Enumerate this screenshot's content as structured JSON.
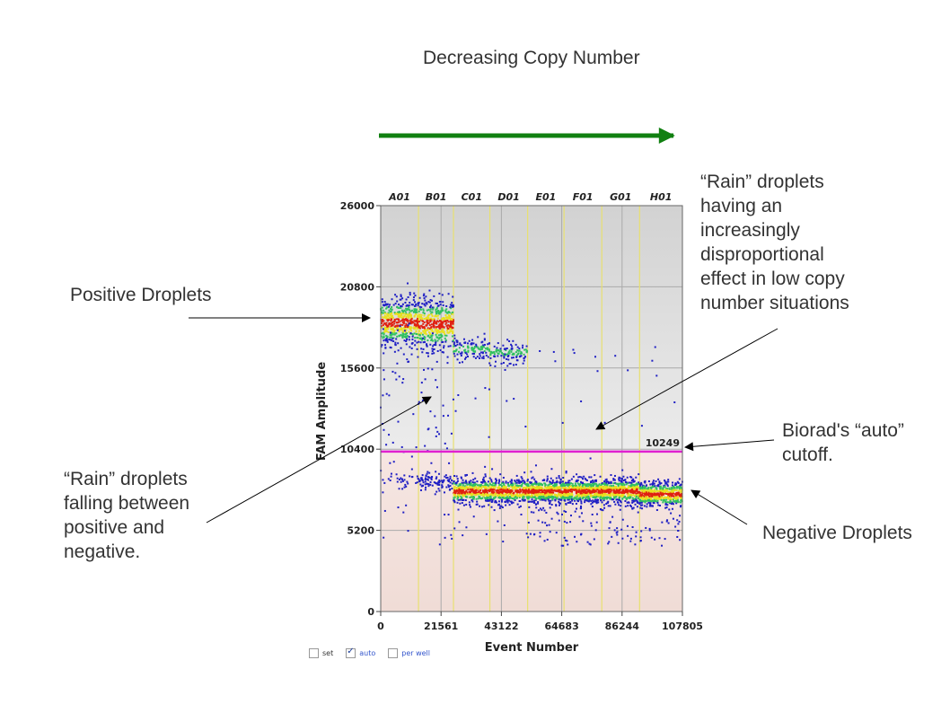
{
  "annotations": {
    "direction_label": "Decreasing Copy Number",
    "positive_droplets": "Positive Droplets",
    "rain_low_copy": "“Rain” droplets\nhaving an\nincreasingly\ndisproportional\neffect in low copy\nnumber situations",
    "rain_between": "“Rain” droplets\nfalling between\npositive and\nnegative.",
    "cutoff_note": "Biorad's “auto”\ncutoff.",
    "negative_droplets": "Negative Droplets",
    "arrow_color": "#118011"
  },
  "controls": {
    "set_label": "set",
    "auto_label": "auto",
    "auto_checked": true,
    "per_well_label": "per well"
  },
  "chart_data": {
    "type": "scatter",
    "xlabel": "Event Number",
    "ylabel": "FAM Amplitude",
    "xlim": [
      0,
      107805
    ],
    "ylim": [
      0,
      26000
    ],
    "x_ticks": [
      0,
      21561,
      43122,
      64683,
      86244,
      107805
    ],
    "y_ticks": [
      0,
      5200,
      10400,
      15600,
      20800,
      26000
    ],
    "wells": [
      "A01",
      "B01",
      "C01",
      "D01",
      "E01",
      "F01",
      "G01",
      "H01"
    ],
    "well_boundaries": [
      0,
      13500,
      26000,
      39000,
      52500,
      65500,
      79000,
      92500,
      107805
    ],
    "threshold": {
      "value": 10249,
      "label": "10249",
      "color": "#e020d0"
    },
    "colors": {
      "positive_region": "#d8d8d8",
      "negative_region": "#f4e2de",
      "point": "#1f1fc4",
      "density_high": "#e02010",
      "density_mid": "#e8e020",
      "density_low": "#30c060",
      "well_divider": "#e8e070"
    },
    "series": [
      {
        "well": "A01",
        "positive_center": 18500,
        "positive_spread": 1400,
        "negative_center": 8400,
        "negative_spread": 300,
        "positive_fraction": 0.92
      },
      {
        "well": "B01",
        "positive_center": 18400,
        "positive_spread": 1500,
        "negative_center": 8300,
        "negative_spread": 300,
        "positive_fraction": 0.85
      },
      {
        "well": "C01",
        "positive_center": 16800,
        "positive_spread": 700,
        "negative_center": 7700,
        "negative_spread": 400,
        "positive_fraction": 0.25
      },
      {
        "well": "D01",
        "positive_center": 16600,
        "positive_spread": 700,
        "negative_center": 7700,
        "negative_spread": 400,
        "positive_fraction": 0.22
      },
      {
        "well": "E01",
        "positive_center": 16500,
        "positive_spread": 700,
        "negative_center": 7700,
        "negative_spread": 400,
        "positive_fraction": 0.004
      },
      {
        "well": "F01",
        "positive_center": 16500,
        "positive_spread": 700,
        "negative_center": 7700,
        "negative_spread": 400,
        "positive_fraction": 0.003
      },
      {
        "well": "G01",
        "positive_center": 16500,
        "positive_spread": 700,
        "negative_center": 7700,
        "negative_spread": 400,
        "positive_fraction": 0.003
      },
      {
        "well": "H01",
        "positive_center": 16500,
        "positive_spread": 700,
        "negative_center": 7500,
        "negative_spread": 400,
        "positive_fraction": 0.002
      }
    ]
  }
}
